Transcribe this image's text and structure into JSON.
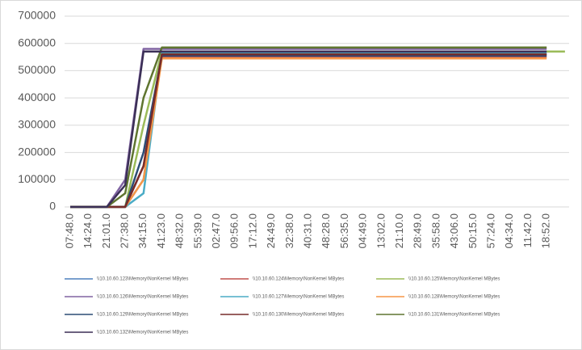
{
  "chart_data": {
    "type": "line",
    "categories": [
      "07:48.0",
      "14:24.0",
      "21:01.0",
      "27:38.0",
      "34:15.0",
      "41:23.0",
      "48:32.0",
      "55:39.0",
      "02:47.0",
      "09:56.0",
      "17:12.0",
      "24:49.0",
      "32:38.0",
      "40:31.0",
      "48:28.0",
      "56:35.0",
      "04:49.0",
      "13:02.0",
      "21:10.0",
      "28:49.0",
      "35:58.0",
      "43:06.0",
      "50:15.0",
      "57:24.0",
      "04:34.0",
      "11:42.0",
      "18:52.0",
      null
    ],
    "ylim": [
      0,
      700000
    ],
    "yticks": [
      0,
      100000,
      200000,
      300000,
      400000,
      500000,
      600000,
      700000
    ],
    "grid": true,
    "series": [
      {
        "name": "\\\\10.10.60.123\\Memory\\NonKernel MBytes",
        "color": "#4f81bd",
        "values": [
          0,
          0,
          0,
          0,
          100000,
          560000,
          560000,
          560000,
          560000,
          560000,
          560000,
          560000,
          560000,
          560000,
          560000,
          560000,
          560000,
          560000,
          560000,
          560000,
          560000,
          560000,
          560000,
          560000,
          560000,
          560000,
          560000,
          null
        ]
      },
      {
        "name": "\\\\10.10.60.124\\Memory\\NonKernel MBytes",
        "color": "#c0504d",
        "values": [
          0,
          0,
          0,
          0,
          150000,
          550000,
          550000,
          550000,
          550000,
          550000,
          550000,
          550000,
          550000,
          550000,
          550000,
          550000,
          550000,
          550000,
          550000,
          550000,
          550000,
          550000,
          550000,
          550000,
          550000,
          550000,
          550000,
          null
        ]
      },
      {
        "name": "\\\\10.10.60.125\\Memory\\NonKernel MBytes",
        "color": "#9bbb59",
        "values": [
          0,
          0,
          0,
          0,
          300000,
          570000,
          570000,
          570000,
          570000,
          570000,
          570000,
          570000,
          570000,
          570000,
          570000,
          570000,
          570000,
          570000,
          570000,
          570000,
          570000,
          570000,
          570000,
          570000,
          570000,
          570000,
          570000,
          570000
        ]
      },
      {
        "name": "\\\\10.10.60.126\\Memory\\NonKernel MBytes",
        "color": "#8064a2",
        "values": [
          0,
          0,
          0,
          100000,
          580000,
          580000,
          580000,
          580000,
          580000,
          580000,
          580000,
          580000,
          580000,
          580000,
          580000,
          580000,
          580000,
          580000,
          580000,
          580000,
          580000,
          580000,
          580000,
          580000,
          580000,
          580000,
          580000,
          null
        ]
      },
      {
        "name": "\\\\10.10.60.127\\Memory\\NonKernel MBytes",
        "color": "#4bacc6",
        "values": [
          0,
          0,
          0,
          0,
          50000,
          565000,
          565000,
          565000,
          565000,
          565000,
          565000,
          565000,
          565000,
          565000,
          565000,
          565000,
          565000,
          565000,
          565000,
          565000,
          565000,
          565000,
          565000,
          565000,
          565000,
          565000,
          565000,
          null
        ]
      },
      {
        "name": "\\\\10.10.60.128\\Memory\\NonKernel MBytes",
        "color": "#f79646",
        "values": [
          0,
          0,
          0,
          0,
          100000,
          545000,
          545000,
          545000,
          545000,
          545000,
          545000,
          545000,
          545000,
          545000,
          545000,
          545000,
          545000,
          545000,
          545000,
          545000,
          545000,
          545000,
          545000,
          545000,
          545000,
          545000,
          545000,
          null
        ]
      },
      {
        "name": "\\\\10.10.60.129\\Memory\\NonKernel MBytes",
        "color": "#2c4d75",
        "values": [
          0,
          0,
          0,
          0,
          200000,
          555000,
          555000,
          555000,
          555000,
          555000,
          555000,
          555000,
          555000,
          555000,
          555000,
          555000,
          555000,
          555000,
          555000,
          555000,
          555000,
          555000,
          555000,
          555000,
          555000,
          555000,
          555000,
          null
        ]
      },
      {
        "name": "\\\\10.10.60.130\\Memory\\NonKernel MBytes",
        "color": "#772c2a",
        "values": [
          0,
          0,
          0,
          0,
          150000,
          560000,
          560000,
          560000,
          560000,
          560000,
          560000,
          560000,
          560000,
          560000,
          560000,
          560000,
          560000,
          560000,
          560000,
          560000,
          560000,
          560000,
          560000,
          560000,
          560000,
          560000,
          560000,
          null
        ]
      },
      {
        "name": "\\\\10.10.60.131\\Memory\\NonKernel MBytes",
        "color": "#5f7530",
        "values": [
          0,
          0,
          0,
          50000,
          400000,
          585000,
          585000,
          585000,
          585000,
          585000,
          585000,
          585000,
          585000,
          585000,
          585000,
          585000,
          585000,
          585000,
          585000,
          585000,
          585000,
          585000,
          585000,
          585000,
          585000,
          585000,
          585000,
          null
        ]
      },
      {
        "name": "\\\\10.10.60.132\\Memory\\NonKernel MBytes",
        "color": "#3b2f56",
        "values": [
          0,
          0,
          0,
          80000,
          570000,
          570000,
          570000,
          570000,
          570000,
          570000,
          570000,
          570000,
          570000,
          570000,
          570000,
          570000,
          570000,
          570000,
          570000,
          570000,
          570000,
          570000,
          570000,
          570000,
          570000,
          570000,
          570000,
          null
        ]
      }
    ]
  }
}
